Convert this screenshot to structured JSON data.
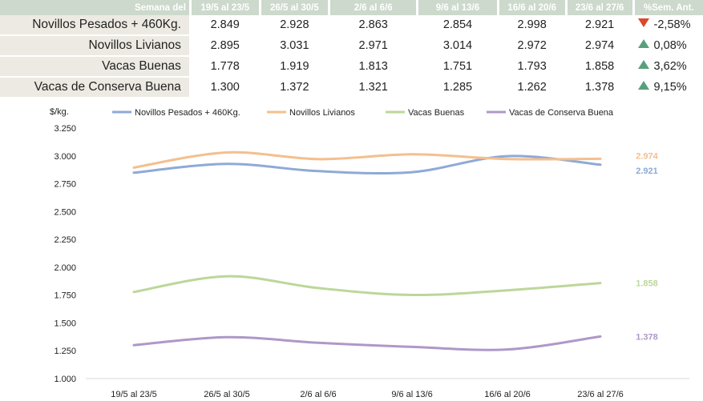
{
  "table": {
    "header_label": "Semana del",
    "change_label": "%Sem. Ant.",
    "weeks": [
      "19/5 al 23/5",
      "26/5 al 30/5",
      "2/6 al 6/6",
      "9/6 al 13/6",
      "16/6 al 20/6",
      "23/6 al 27/6"
    ],
    "rows": [
      {
        "name": "Novillos Pesados + 460Kg.",
        "values": [
          "2.849",
          "2.928",
          "2.863",
          "2.854",
          "2.998",
          "2.921"
        ],
        "change": "-2,58%",
        "direction": "down"
      },
      {
        "name": "Novillos Livianos",
        "values": [
          "2.895",
          "3.031",
          "2.971",
          "3.014",
          "2.972",
          "2.974"
        ],
        "change": "0,08%",
        "direction": "up"
      },
      {
        "name": "Vacas Buenas",
        "values": [
          "1.778",
          "1.919",
          "1.813",
          "1.751",
          "1.793",
          "1.858"
        ],
        "change": "3,62%",
        "direction": "up"
      },
      {
        "name": "Vacas de Conserva Buena",
        "values": [
          "1.300",
          "1.372",
          "1.321",
          "1.285",
          "1.262",
          "1.378"
        ],
        "change": "9,15%",
        "direction": "up"
      }
    ]
  },
  "colors": {
    "up_triangle": "#58a07c",
    "down_triangle": "#d84a2a",
    "header_bg": "#ccd9cc",
    "name_bg": "#eceae2"
  },
  "chart_data": {
    "type": "line",
    "ylabel": "$/kg.",
    "ylim": [
      1000,
      3250
    ],
    "yticks": [
      1000,
      1250,
      1500,
      1750,
      2000,
      2250,
      2500,
      2750,
      3000,
      3250
    ],
    "ytick_labels": [
      "1.000",
      "1.250",
      "1.500",
      "1.750",
      "2.000",
      "2.250",
      "2.500",
      "2.750",
      "3.000",
      "3.250"
    ],
    "categories": [
      "19/5 al 23/5",
      "26/5 al 30/5",
      "2/6 al 6/6",
      "9/6 al 13/6",
      "16/6 al 20/6",
      "23/6 al 27/6"
    ],
    "legend_position": "top",
    "grid": false,
    "series": [
      {
        "name": "Novillos Pesados + 460Kg.",
        "color": "#8eaad6",
        "values": [
          2849,
          2928,
          2863,
          2854,
          2998,
          2921
        ],
        "end_label": "2.921"
      },
      {
        "name": "Novillos Livianos",
        "color": "#f4bf8e",
        "values": [
          2895,
          3031,
          2971,
          3014,
          2972,
          2974
        ],
        "end_label": "2.974"
      },
      {
        "name": "Vacas Buenas",
        "color": "#bcd79a",
        "values": [
          1778,
          1919,
          1813,
          1751,
          1793,
          1858
        ],
        "end_label": "1.858"
      },
      {
        "name": "Vacas de Conserva Buena",
        "color": "#ae98c8",
        "values": [
          1300,
          1372,
          1321,
          1285,
          1262,
          1378
        ],
        "end_label": "1.378"
      }
    ]
  }
}
